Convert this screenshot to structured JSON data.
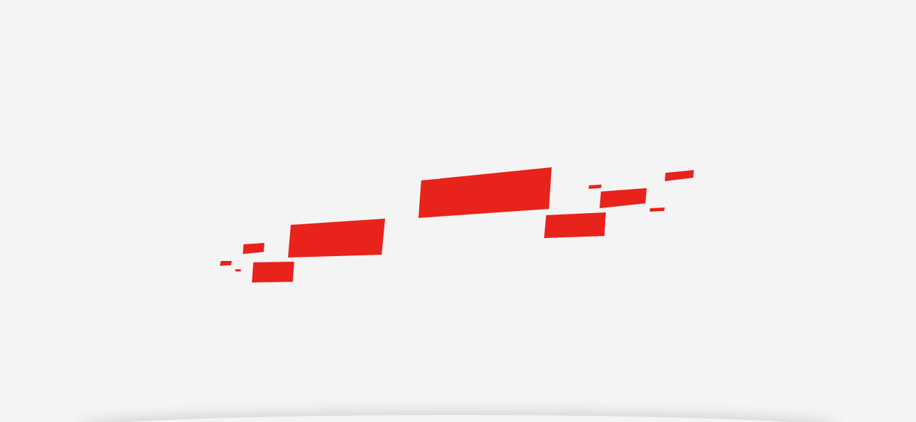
{
  "page": {
    "background_color": "#f4f4f4"
  },
  "graphic": {
    "icon": "scattered-red-parallelogram-blocks",
    "fill_color": "#e8231b"
  }
}
